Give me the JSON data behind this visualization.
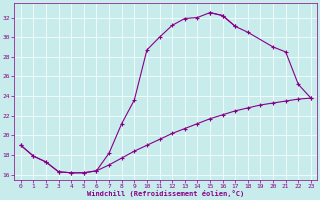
{
  "xlabel": "Windchill (Refroidissement éolien,°C)",
  "background_color": "#c8ecec",
  "line_color": "#880088",
  "ylim": [
    15.5,
    33.5
  ],
  "xlim": [
    -0.5,
    23.5
  ],
  "yticks": [
    16,
    18,
    20,
    22,
    24,
    26,
    28,
    30,
    32
  ],
  "xticks": [
    0,
    1,
    2,
    3,
    4,
    5,
    6,
    7,
    8,
    9,
    10,
    11,
    12,
    13,
    14,
    15,
    16,
    17,
    18,
    19,
    20,
    21,
    22,
    23
  ],
  "curve1_x": [
    0,
    1,
    2,
    3,
    4,
    5,
    6,
    7,
    8,
    9,
    10,
    11,
    12,
    13,
    14,
    15,
    16,
    17
  ],
  "curve1_y": [
    19.0,
    17.9,
    17.3,
    16.3,
    16.2,
    16.2,
    16.4,
    18.2,
    21.2,
    23.6,
    28.7,
    30.0,
    31.2,
    31.9,
    32.0,
    32.5,
    32.2,
    31.1
  ],
  "curve2_x": [
    15,
    16,
    17,
    18,
    20,
    21,
    22,
    23
  ],
  "curve2_y": [
    32.5,
    32.2,
    31.1,
    30.5,
    29.0,
    28.5,
    25.2,
    23.8
  ],
  "curve3_x": [
    0,
    1,
    2,
    3,
    4,
    5,
    6,
    7,
    8,
    9,
    10,
    11,
    12,
    13,
    14,
    15,
    16,
    17,
    18,
    19,
    20,
    21,
    22,
    23
  ],
  "curve3_y": [
    19.0,
    17.9,
    17.3,
    16.3,
    16.2,
    16.2,
    16.4,
    17.0,
    17.7,
    18.4,
    19.0,
    19.6,
    20.2,
    20.7,
    21.2,
    21.7,
    22.1,
    22.5,
    22.8,
    23.1,
    23.3,
    23.5,
    23.7,
    23.8
  ]
}
